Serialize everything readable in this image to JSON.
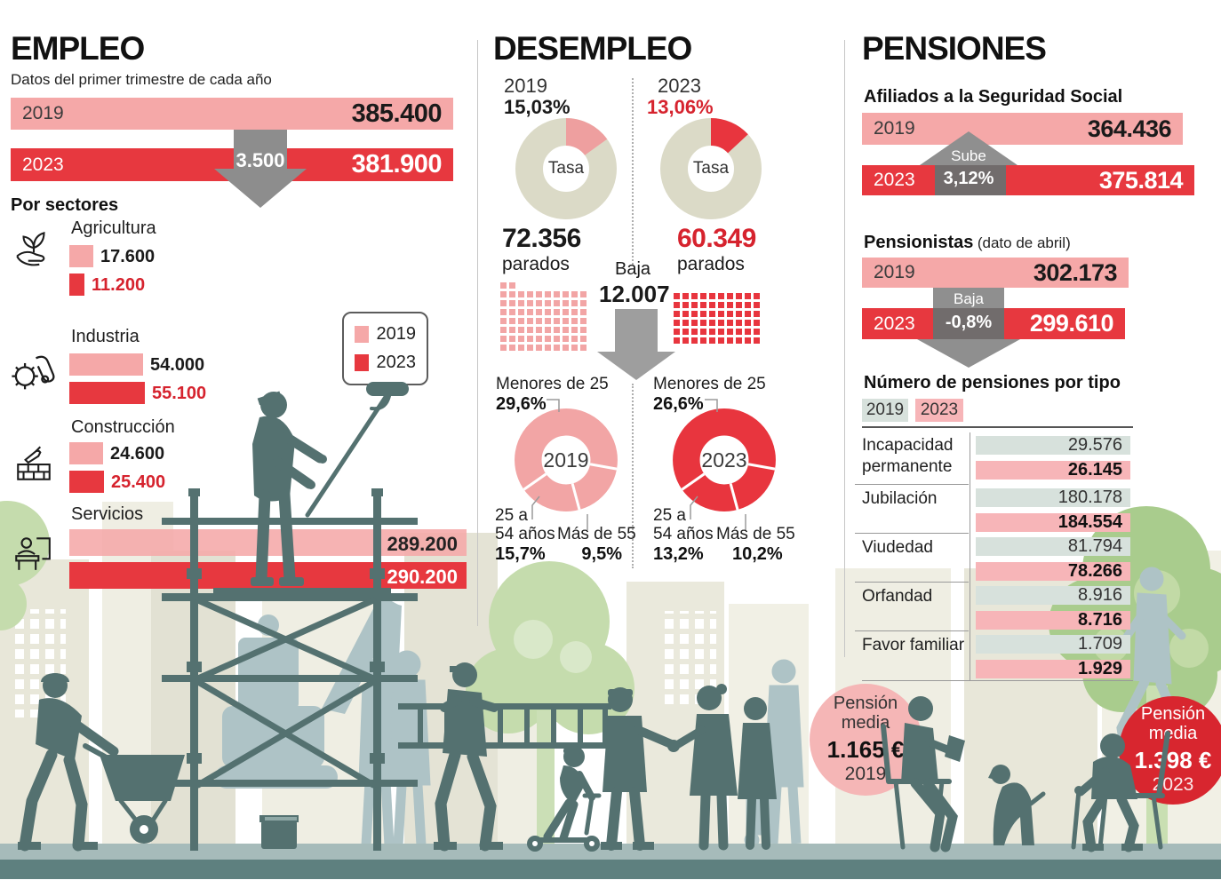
{
  "colors": {
    "pink": "#f5a8a8",
    "red": "#e7383f",
    "value_red": "#d6232e",
    "gray_arrow": "#8f8f8f",
    "dark_gray_arrow": "#716c6c",
    "donut_base": "#dbdac7",
    "table_2019_bg": "#d7e1dc",
    "table_2023_bg": "#f7b5b8",
    "media_circle_2019": "#f5b6b6",
    "media_circle_2023": "#d8262f",
    "scene_dark": "#547170",
    "scene_light": "#aec3c6",
    "tree_green": "#a9cc8d",
    "building_beige": "#e8e7d9"
  },
  "empleo": {
    "title": "EMPLEO",
    "subtitle": "Datos del primer trimestre de cada año",
    "bar_2019_label": "2019",
    "bar_2019_value": "385.400",
    "bar_2023_label": "2023",
    "bar_2023_value": "381.900",
    "diff_value": "3.500",
    "sectors_heading": "Por sectores",
    "sectors": [
      {
        "name": "Agricultura",
        "icon": "agriculture-icon",
        "v2019": "17.600",
        "v2023": "11.200"
      },
      {
        "name": "Industria",
        "icon": "industry-icon",
        "v2019": "54.000",
        "v2023": "55.100"
      },
      {
        "name": "Construcción",
        "icon": "construction-icon",
        "v2019": "24.600",
        "v2023": "25.400"
      },
      {
        "name": "Servicios",
        "icon": "services-icon",
        "v2019": "289.200",
        "v2023": "290.200"
      }
    ],
    "legend": {
      "y2019": "2019",
      "y2023": "2023"
    }
  },
  "desempleo": {
    "title": "DESEMPLEO",
    "baja_label": "Baja",
    "baja_value": "12.007",
    "col2019": {
      "year": "2019",
      "rate": "15,03%",
      "tasa_label": "Tasa",
      "parados_value": "72.356",
      "parados_label": "parados",
      "waffle_squares": 72,
      "age": {
        "menores_label": "Menores de 25",
        "menores_value": "29,6%",
        "center_year": "2019",
        "adultos_label1": "25 a",
        "adultos_label2": "54 años",
        "adultos_value": "15,7%",
        "mayores_label": "Más de 55",
        "mayores_value": "9,5%"
      }
    },
    "col2023": {
      "year": "2023",
      "rate": "13,06%",
      "tasa_label": "Tasa",
      "parados_value": "60.349",
      "parados_label": "parados",
      "waffle_squares": 60,
      "age": {
        "menores_label": "Menores de 25",
        "menores_value": "26,6%",
        "center_year": "2023",
        "adultos_label1": "25 a",
        "adultos_label2": "54 años",
        "adultos_value": "13,2%",
        "mayores_label": "Más de 55",
        "mayores_value": "10,2%"
      }
    }
  },
  "pensiones": {
    "title": "PENSIONES",
    "afiliados": {
      "heading": "Afiliados a la Seguridad Social",
      "label_2019": "2019",
      "v2019": "364.436",
      "label_2023": "2023",
      "v2023": "375.814",
      "arrow_label": "Sube",
      "arrow_value": "3,12%"
    },
    "pensionistas": {
      "heading": "Pensionistas",
      "note": "(dato de abril)",
      "label_2019": "2019",
      "v2019": "302.173",
      "label_2023": "2023",
      "v2023": "299.610",
      "arrow_label": "Baja",
      "arrow_value": "-0,8%"
    },
    "por_tipo": {
      "heading": "Número de pensiones por tipo",
      "legend_2019": "2019",
      "legend_2023": "2023",
      "rows": [
        {
          "label": "Incapacidad permanente",
          "v2019": "29.576",
          "v2023": "26.145"
        },
        {
          "label": "Jubilación",
          "v2019": "180.178",
          "v2023": "184.554"
        },
        {
          "label": "Viudedad",
          "v2019": "81.794",
          "v2023": "78.266"
        },
        {
          "label": "Orfandad",
          "v2019": "8.916",
          "v2023": "8.716"
        },
        {
          "label": "Favor familiar",
          "v2019": "1.709",
          "v2023": "1.929"
        }
      ]
    },
    "media_2019": {
      "line1": "Pensión",
      "line2": "media",
      "value": "1.165 €",
      "year": "2019"
    },
    "media_2023": {
      "line1": "Pensión",
      "line2": "media",
      "value": "1.398 €",
      "year": "2023"
    }
  },
  "chart_data": [
    {
      "type": "bar",
      "title": "Empleo — Datos del primer trimestre de cada año",
      "categories": [
        "2019",
        "2023"
      ],
      "values": [
        385400,
        381900
      ],
      "annotation": "Baja 3.500"
    },
    {
      "type": "bar",
      "title": "Empleo por sectores",
      "categories": [
        "Agricultura",
        "Industria",
        "Construcción",
        "Servicios"
      ],
      "series": [
        {
          "name": "2019",
          "values": [
            17600,
            54000,
            24600,
            289200
          ]
        },
        {
          "name": "2023",
          "values": [
            11200,
            55100,
            25400,
            290200
          ]
        }
      ]
    },
    {
      "type": "pie",
      "title": "Tasa de desempleo (%)",
      "categories": [
        "2019",
        "2023"
      ],
      "values": [
        15.03,
        13.06
      ],
      "center_label": "Tasa"
    },
    {
      "type": "bar",
      "title": "Parados",
      "categories": [
        "2019",
        "2023"
      ],
      "values": [
        72356,
        60349
      ],
      "annotation": "Baja 12.007"
    },
    {
      "type": "pie",
      "title": "Desempleo por edad 2019 (%)",
      "categories": [
        "Menores de 25",
        "25 a 54 años",
        "Más de 55"
      ],
      "values": [
        29.6,
        15.7,
        9.5
      ]
    },
    {
      "type": "pie",
      "title": "Desempleo por edad 2023 (%)",
      "categories": [
        "Menores de 25",
        "25 a 54 años",
        "Más de 55"
      ],
      "values": [
        26.6,
        13.2,
        10.2
      ]
    },
    {
      "type": "bar",
      "title": "Afiliados a la Seguridad Social",
      "categories": [
        "2019",
        "2023"
      ],
      "values": [
        364436,
        375814
      ],
      "annotation": "Sube 3,12%"
    },
    {
      "type": "bar",
      "title": "Pensionistas (dato de abril)",
      "categories": [
        "2019",
        "2023"
      ],
      "values": [
        302173,
        299610
      ],
      "annotation": "Baja -0,8%"
    },
    {
      "type": "table",
      "title": "Número de pensiones por tipo",
      "categories": [
        "Incapacidad permanente",
        "Jubilación",
        "Viudedad",
        "Orfandad",
        "Favor familiar"
      ],
      "series": [
        {
          "name": "2019",
          "values": [
            29576,
            180178,
            81794,
            8916,
            1709
          ]
        },
        {
          "name": "2023",
          "values": [
            26145,
            184554,
            78266,
            8716,
            1929
          ]
        }
      ]
    },
    {
      "type": "bar",
      "title": "Pensión media (€)",
      "categories": [
        "2019",
        "2023"
      ],
      "values": [
        1165,
        1398
      ]
    }
  ]
}
